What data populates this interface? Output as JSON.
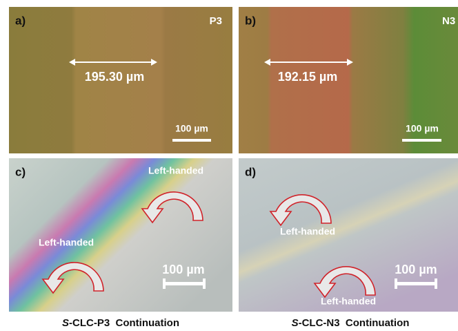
{
  "panels": [
    {
      "label": "a)",
      "tag": "P3",
      "measure": "195.30 µm",
      "scale": "100 µm"
    },
    {
      "label": "b)",
      "tag": "N3",
      "measure": "192.15 µm",
      "scale": "100 µm"
    },
    {
      "label": "c)",
      "notes": [
        "Left-handed",
        "Left-handed"
      ],
      "scale": "100 µm"
    },
    {
      "label": "d)",
      "notes": [
        "Left-handed",
        "Left-handed"
      ],
      "scale": "100 µm"
    }
  ],
  "captions": [
    {
      "italic": "S",
      "rest": "-CLC-P3  Continuation"
    },
    {
      "italic": "S",
      "rest": "-CLC-N3  Continuation"
    }
  ]
}
